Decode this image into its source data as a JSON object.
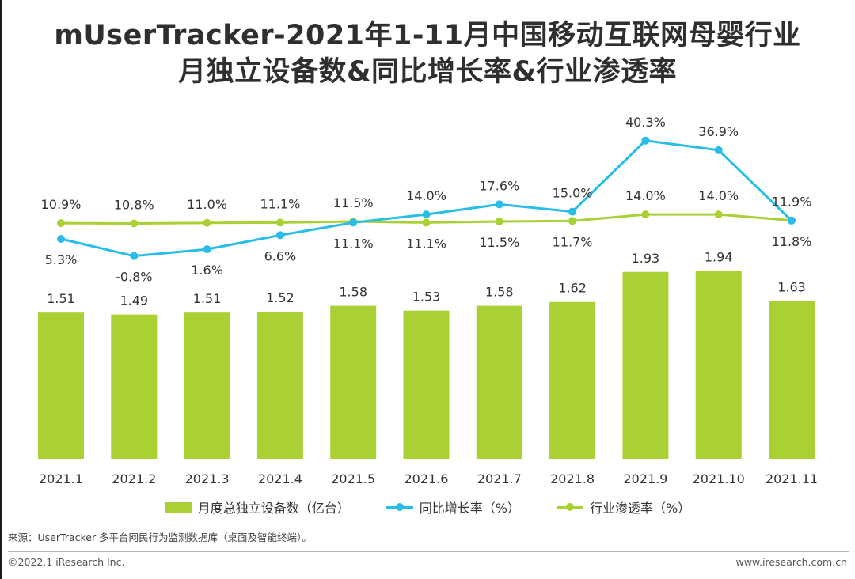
{
  "title": {
    "line1": "mUserTracker-2021年1-11月中国移动互联网母婴行业",
    "line2": "月独立设备数&同比增长率&行业渗透率"
  },
  "legend": {
    "bar": "月度总独立设备数（亿台）",
    "growth": "同比增长率（%）",
    "penetration": "行业渗透率（%）"
  },
  "source_text": "来源：UserTracker 多平台网民行为监测数据库（桌面及智能终端）。",
  "copyright": "©2022.1 iResearch Inc.",
  "website": "www.iresearch.com.cn",
  "colors": {
    "bar": "#a9d134",
    "growth_line": "#27bde8",
    "penetration_line": "#a9d134"
  },
  "chart_data": {
    "type": "bar",
    "categories": [
      "2021.1",
      "2021.2",
      "2021.3",
      "2021.4",
      "2021.5",
      "2021.6",
      "2021.7",
      "2021.8",
      "2021.9",
      "2021.10",
      "2021.11"
    ],
    "series": [
      {
        "name": "月度总独立设备数（亿台）",
        "type": "bar",
        "values": [
          1.51,
          1.49,
          1.51,
          1.52,
          1.58,
          1.53,
          1.58,
          1.62,
          1.93,
          1.94,
          1.63
        ],
        "labels": [
          "1.51",
          "1.49",
          "1.51",
          "1.52",
          "1.58",
          "1.53",
          "1.58",
          "1.62",
          "1.93",
          "1.94",
          "1.63"
        ]
      },
      {
        "name": "同比增长率（%）",
        "type": "line",
        "values": [
          5.3,
          -0.8,
          1.6,
          6.6,
          11.1,
          14.0,
          17.6,
          15.0,
          40.3,
          36.9,
          11.8
        ],
        "labels": [
          "5.3%",
          "-0.8%",
          "1.6%",
          "6.6%",
          "11.1%",
          "14.0%",
          "17.6%",
          "15.0%",
          "40.3%",
          "36.9%",
          "11.8%"
        ],
        "label_pos": [
          "below",
          "below",
          "below",
          "below",
          "below",
          "above",
          "above",
          "above",
          "above",
          "above",
          "below"
        ]
      },
      {
        "name": "行业渗透率（%）",
        "type": "line",
        "values": [
          10.9,
          10.8,
          11.0,
          11.1,
          11.5,
          11.1,
          11.5,
          11.7,
          14.0,
          14.0,
          11.9
        ],
        "labels": [
          "10.9%",
          "10.8%",
          "11.0%",
          "11.1%",
          "11.5%",
          "11.1%",
          "11.5%",
          "11.7%",
          "14.0%",
          "14.0%",
          "11.9%"
        ],
        "label_pos": [
          "above",
          "above",
          "above",
          "above",
          "above",
          "below",
          "below",
          "below",
          "above",
          "above",
          "above"
        ]
      }
    ]
  }
}
